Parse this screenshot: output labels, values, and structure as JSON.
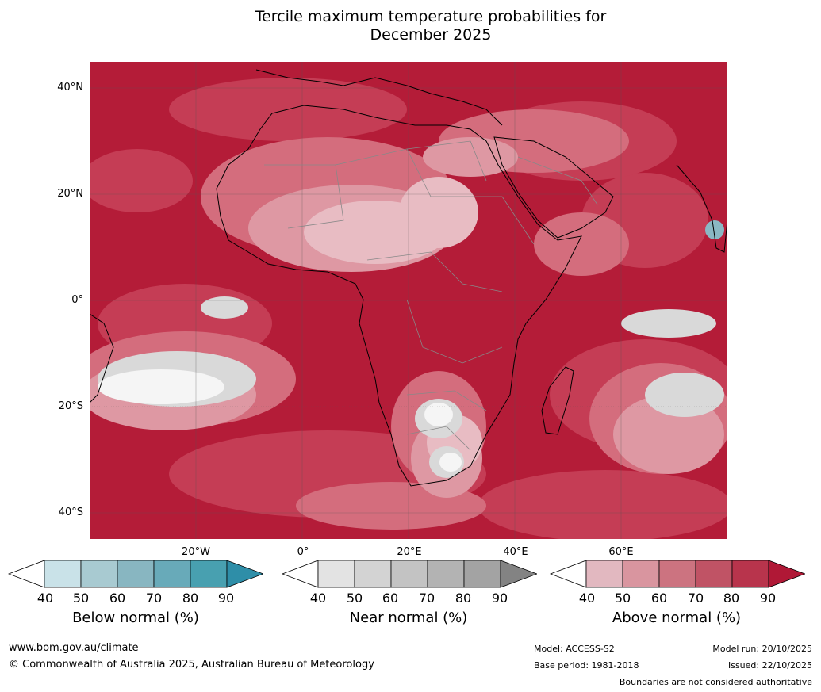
{
  "title_line1": "Tercile maximum temperature probabilities for",
  "title_line2": "December 2025",
  "map": {
    "lat_labels": [
      "40°N",
      "20°N",
      "0°",
      "20°S",
      "40°S"
    ],
    "lon_labels": [
      "20°W",
      "0°",
      "20°E",
      "40°E",
      "60°E"
    ],
    "colors": {
      "ocean_above": "#b41c38",
      "above_80": "#c53d55",
      "above_70": "#d46d7d",
      "above_60": "#de98a3",
      "above_50": "#e8bcc3",
      "near_normal": "#d9d9d9",
      "below_normal": "#8ab8c4",
      "coastline": "#000000",
      "borders": "#888888"
    }
  },
  "colorbars": [
    {
      "title": "Below normal (%)",
      "ticks": [
        "40",
        "50",
        "60",
        "70",
        "80",
        "90"
      ],
      "colors": [
        "#ffffff",
        "#c9e2e8",
        "#a8cad1",
        "#88b6c1",
        "#68aab9",
        "#48a0b0",
        "#2e8ea8"
      ]
    },
    {
      "title": "Near normal (%)",
      "ticks": [
        "40",
        "50",
        "60",
        "70",
        "80",
        "90"
      ],
      "colors": [
        "#ffffff",
        "#e3e3e3",
        "#d3d3d3",
        "#c3c3c3",
        "#b3b3b3",
        "#a3a3a3",
        "#838383"
      ]
    },
    {
      "title": "Above normal (%)",
      "ticks": [
        "40",
        "50",
        "60",
        "70",
        "80",
        "90"
      ],
      "colors": [
        "#ffffff",
        "#e2b8c0",
        "#d9959f",
        "#cc7380",
        "#c05365",
        "#b8344c",
        "#b01836"
      ]
    }
  ],
  "footer": {
    "url": "www.bom.gov.au/climate",
    "copyright": "© Commonwealth of Australia 2025, Australian Bureau of Meteorology",
    "model": "Model: ACCESS-S2",
    "base_period": "Base period: 1981-2018",
    "model_run": "Model run: 20/10/2025",
    "issued": "Issued: 22/10/2025",
    "disclaimer": "Boundaries are not considered authoritative"
  }
}
